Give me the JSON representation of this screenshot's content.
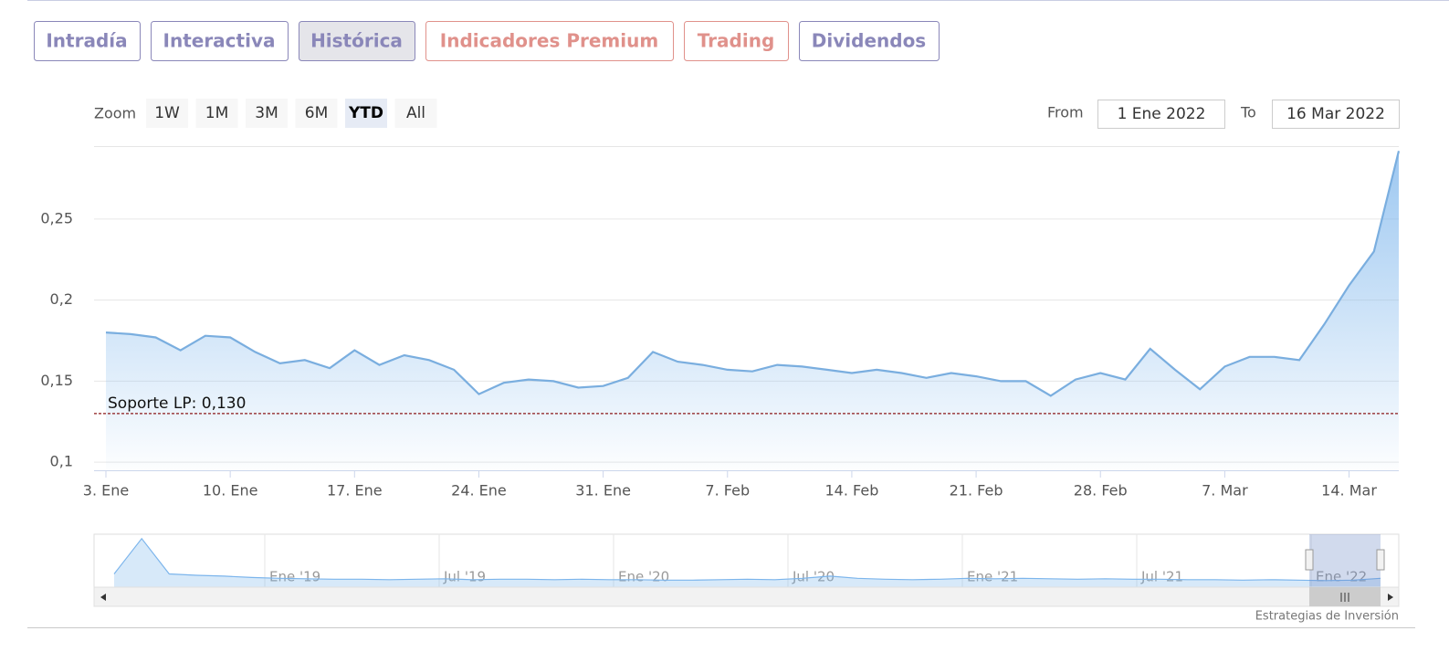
{
  "tabs": [
    {
      "label": "Intradía",
      "color": "#8a87b9"
    },
    {
      "label": "Interactiva",
      "color": "#8a87b9"
    },
    {
      "label": "Histórica",
      "color": "#8a87b9"
    },
    {
      "label": "Indicadores Premium",
      "color": "#e0918b"
    },
    {
      "label": "Trading",
      "color": "#e0918b"
    },
    {
      "label": "Dividendos",
      "color": "#8a87b9"
    }
  ],
  "active_tab": 2,
  "zoom": {
    "label": "Zoom",
    "buttons": [
      "1W",
      "1M",
      "3M",
      "6M",
      "YTD",
      "All"
    ],
    "selected": 4
  },
  "range": {
    "from_label": "From",
    "from": "1 Ene 2022",
    "to_label": "To",
    "to": "16 Mar 2022"
  },
  "credit": "Estrategias de Inversión",
  "chart_data": {
    "type": "area",
    "color": "#7aaedf",
    "x": [
      "2022-01-03",
      "2022-01-04",
      "2022-01-05",
      "2022-01-06",
      "2022-01-07",
      "2022-01-10",
      "2022-01-11",
      "2022-01-12",
      "2022-01-13",
      "2022-01-14",
      "2022-01-17",
      "2022-01-18",
      "2022-01-19",
      "2022-01-20",
      "2022-01-21",
      "2022-01-24",
      "2022-01-25",
      "2022-01-26",
      "2022-01-27",
      "2022-01-28",
      "2022-01-31",
      "2022-02-01",
      "2022-02-02",
      "2022-02-03",
      "2022-02-04",
      "2022-02-07",
      "2022-02-08",
      "2022-02-09",
      "2022-02-10",
      "2022-02-11",
      "2022-02-14",
      "2022-02-15",
      "2022-02-16",
      "2022-02-17",
      "2022-02-18",
      "2022-02-21",
      "2022-02-22",
      "2022-02-23",
      "2022-02-24",
      "2022-02-25",
      "2022-02-28",
      "2022-03-01",
      "2022-03-02",
      "2022-03-03",
      "2022-03-04",
      "2022-03-07",
      "2022-03-08",
      "2022-03-09",
      "2022-03-10",
      "2022-03-11",
      "2022-03-14",
      "2022-03-15",
      "2022-03-16"
    ],
    "values": [
      0.18,
      0.179,
      0.177,
      0.169,
      0.178,
      0.177,
      0.168,
      0.161,
      0.163,
      0.158,
      0.169,
      0.16,
      0.166,
      0.163,
      0.157,
      0.142,
      0.149,
      0.151,
      0.15,
      0.146,
      0.147,
      0.152,
      0.168,
      0.162,
      0.16,
      0.157,
      0.156,
      0.16,
      0.159,
      0.157,
      0.155,
      0.157,
      0.155,
      0.152,
      0.155,
      0.153,
      0.15,
      0.15,
      0.141,
      0.151,
      0.155,
      0.151,
      0.17,
      0.157,
      0.145,
      0.159,
      0.165,
      0.165,
      0.163,
      0.185,
      0.209,
      0.23,
      0.292
    ],
    "xticks": [
      {
        "value": "2022-01-03",
        "label": "3. Ene"
      },
      {
        "value": "2022-01-10",
        "label": "10. Ene"
      },
      {
        "value": "2022-01-17",
        "label": "17. Ene"
      },
      {
        "value": "2022-01-24",
        "label": "24. Ene"
      },
      {
        "value": "2022-01-31",
        "label": "31. Ene"
      },
      {
        "value": "2022-02-07",
        "label": "7. Feb"
      },
      {
        "value": "2022-02-14",
        "label": "14. Feb"
      },
      {
        "value": "2022-02-21",
        "label": "21. Feb"
      },
      {
        "value": "2022-02-28",
        "label": "28. Feb"
      },
      {
        "value": "2022-03-07",
        "label": "7. Mar"
      },
      {
        "value": "2022-03-14",
        "label": "14. Mar"
      }
    ],
    "ylim": [
      0.095,
      0.295
    ],
    "yticks": [
      {
        "value": 0.1,
        "label": "0,1"
      },
      {
        "value": 0.15,
        "label": "0,15"
      },
      {
        "value": 0.2,
        "label": "0,2"
      },
      {
        "value": 0.25,
        "label": "0,25"
      }
    ],
    "grid": true,
    "plot_lines": [
      {
        "value": 0.13,
        "label": "Soporte LP: 0,130",
        "color": "#8b1a1a"
      }
    ],
    "navigator": {
      "ticks": [
        "Ene '19",
        "Jul '19",
        "Ene '20",
        "Jul '20",
        "Ene '21",
        "Jul '21",
        "Ene '22"
      ],
      "ylim": [
        0,
        1.2
      ],
      "values": [
        0.3,
        1.1,
        0.3,
        0.27,
        0.25,
        0.22,
        0.2,
        0.19,
        0.18,
        0.18,
        0.17,
        0.18,
        0.19,
        0.17,
        0.18,
        0.18,
        0.17,
        0.18,
        0.17,
        0.17,
        0.16,
        0.16,
        0.17,
        0.18,
        0.17,
        0.2,
        0.25,
        0.2,
        0.18,
        0.17,
        0.18,
        0.2,
        0.19,
        0.2,
        0.19,
        0.18,
        0.19,
        0.18,
        0.18,
        0.17,
        0.17,
        0.16,
        0.17,
        0.16,
        0.15,
        0.16,
        0.2
      ]
    }
  }
}
